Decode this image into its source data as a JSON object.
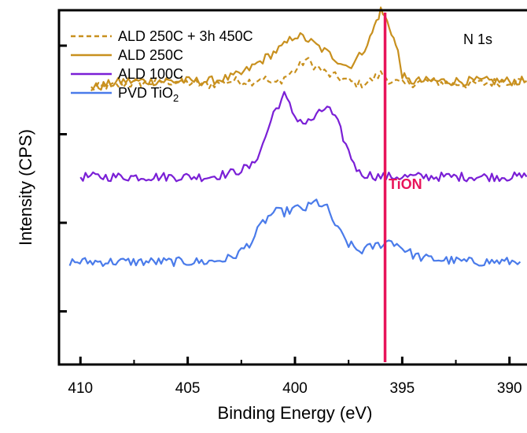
{
  "chart_data": {
    "type": "line",
    "xlabel": "Binding Energy (eV)",
    "ylabel": "Intensity (CPS)",
    "xlim": [
      411,
      389
    ],
    "ylim": [
      0,
      100
    ],
    "x_reversed": true,
    "x_ticks": [
      410,
      405,
      400,
      395,
      390
    ],
    "y_ticks_unlabeled": [
      15,
      40,
      65,
      90
    ],
    "grid": false,
    "legend_position": "top-left",
    "annotations": [
      {
        "text": "N 1s",
        "position": "top-right"
      },
      {
        "text": "TiON",
        "color": "#e8145a",
        "x": 395.8
      }
    ],
    "reference_line": {
      "x": 395.8,
      "color": "#e8145a"
    },
    "series": [
      {
        "name": "ALD 250C + 3h 450C",
        "color": "#c8901e",
        "dash": true,
        "x": [
          409.5,
          408,
          406,
          404,
          403,
          402,
          401.5,
          401,
          400.5,
          400,
          399.5,
          399,
          398.5,
          398,
          397.5,
          397,
          396.5,
          396,
          395.5,
          395,
          394,
          392,
          390,
          389.2
        ],
        "y": [
          78,
          79,
          80,
          79,
          80,
          80,
          81,
          79,
          81,
          83,
          86,
          84,
          82,
          81,
          80,
          79,
          80,
          82,
          80,
          79,
          80,
          79,
          80,
          80
        ]
      },
      {
        "name": "ALD 250C",
        "color": "#c8901e",
        "dash": false,
        "x": [
          409.5,
          408,
          406,
          404,
          403,
          402.5,
          402,
          401.5,
          401,
          400.5,
          400,
          399.5,
          399,
          398.5,
          398,
          397.5,
          397,
          396.5,
          396.2,
          396,
          395.8,
          395.5,
          395.2,
          395,
          394.8,
          394,
          392,
          390,
          389.2
        ],
        "y": [
          78,
          80,
          80,
          80,
          81,
          82,
          84,
          86,
          88,
          90,
          93,
          92,
          90,
          88,
          86,
          84,
          87,
          92,
          97,
          100,
          98,
          94,
          88,
          82,
          80,
          80,
          80,
          80,
          80
        ]
      },
      {
        "name": "ALD 100C",
        "color": "#7a1fd6",
        "dash": false,
        "x": [
          410,
          408,
          406,
          404,
          403,
          402,
          401.5,
          401,
          400.5,
          400,
          399.5,
          399,
          398.5,
          398,
          397.5,
          397,
          396,
          395,
          394,
          392,
          390,
          389.2
        ],
        "y": [
          53,
          53,
          53,
          53,
          54,
          56,
          62,
          71,
          76,
          70,
          68,
          70,
          73,
          68,
          60,
          54,
          53,
          53,
          53,
          53,
          53,
          53
        ]
      },
      {
        "name": "PVD TiO2",
        "color": "#4a7bea",
        "dash": false,
        "x": [
          410.5,
          408,
          406,
          404,
          403,
          402.5,
          402,
          401.5,
          401,
          400.5,
          400,
          399.5,
          399,
          398.5,
          398,
          397.5,
          397,
          396.5,
          396,
          395.5,
          395,
          394.5,
          394,
          392,
          390,
          389.5
        ],
        "y": [
          29,
          29,
          29,
          29,
          30,
          32,
          35,
          40,
          43,
          43,
          44,
          44,
          46,
          44,
          38,
          34,
          32,
          33,
          34,
          35,
          33,
          31,
          30,
          29,
          29,
          29
        ]
      }
    ]
  }
}
